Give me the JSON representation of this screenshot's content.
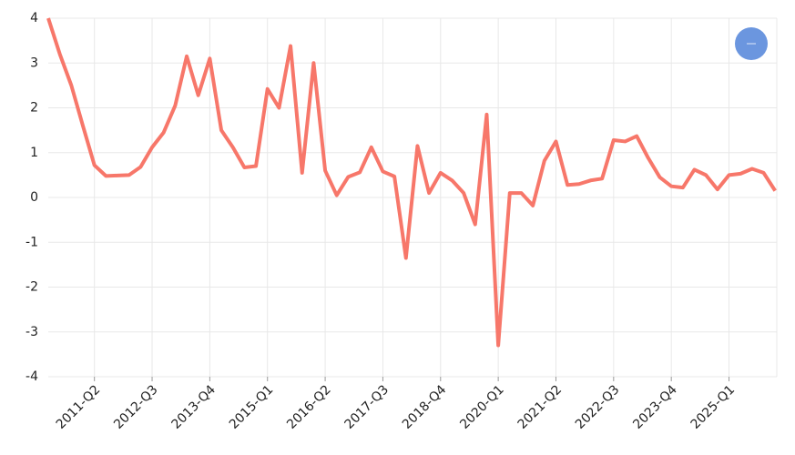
{
  "chart_data": {
    "type": "line",
    "categories": [
      null,
      null,
      null,
      null,
      "2011-Q2",
      null,
      null,
      null,
      null,
      "2012-Q3",
      null,
      null,
      null,
      null,
      "2013-Q4",
      null,
      null,
      null,
      null,
      "2015-Q1",
      null,
      null,
      null,
      null,
      "2016-Q2",
      null,
      null,
      null,
      null,
      "2017-Q3",
      null,
      null,
      null,
      null,
      "2018-Q4",
      null,
      null,
      null,
      null,
      "2020-Q1",
      null,
      null,
      null,
      null,
      "2021-Q2",
      null,
      null,
      null,
      null,
      "2022-Q3",
      null,
      null,
      null,
      null,
      "2023-Q4",
      null,
      null,
      null,
      null,
      "2025-Q1",
      null,
      null,
      null,
      null
    ],
    "series": [
      {
        "color": "#f7776a",
        "values": [
          4.0,
          3.2,
          2.5,
          1.6,
          0.72,
          0.48,
          0.49,
          0.5,
          0.68,
          1.12,
          1.45,
          2.05,
          3.15,
          2.28,
          3.1,
          1.5,
          1.12,
          0.67,
          0.7,
          2.42,
          2.0,
          3.38,
          0.55,
          3.0,
          0.6,
          0.05,
          0.46,
          0.56,
          1.12,
          0.58,
          0.47,
          -1.35,
          1.15,
          0.1,
          0.55,
          0.38,
          0.1,
          -0.6,
          1.85,
          -3.3,
          0.1,
          0.1,
          -0.18,
          0.82,
          1.25,
          0.28,
          0.3,
          0.38,
          0.42,
          1.28,
          1.25,
          1.37,
          0.88,
          0.45,
          0.25,
          0.22,
          0.62,
          0.5,
          0.18,
          0.5,
          0.53,
          0.64,
          0.55,
          0.15
        ]
      }
    ],
    "ylim": [
      -4,
      4
    ],
    "yticks": [
      -4,
      -3,
      -2,
      -1,
      0,
      1,
      2,
      3,
      4
    ],
    "grid": true,
    "legend": "top-right"
  }
}
